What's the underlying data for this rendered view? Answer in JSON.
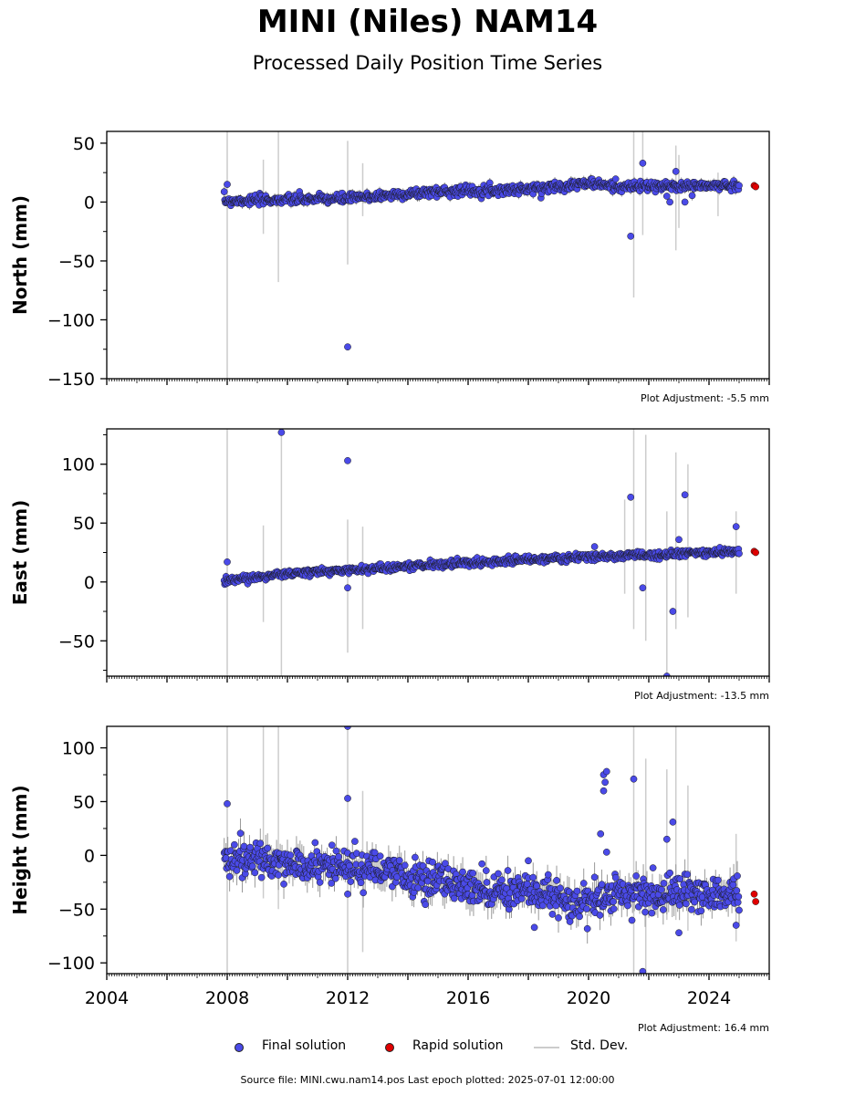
{
  "title": "MINI (Niles) NAM14",
  "subtitle": "Processed Daily Position Time Series",
  "footer": "Source file: MINI.cwu.nam14.pos  Last epoch plotted: 2025-07-01 12:00:00",
  "legend": {
    "final_label": "Final solution",
    "rapid_label": "Rapid solution",
    "stddev_label": "Std. Dev.",
    "final_color": "#4a4ae8",
    "rapid_color": "#e00000",
    "stddev_color": "#cccccc"
  },
  "chart_data": [
    {
      "type": "scatter",
      "ylabel": "North (mm)",
      "adjustment": "Plot Adjustment: -5.5 mm",
      "xlim": [
        2004,
        2026
      ],
      "ylim": [
        -150,
        60
      ],
      "yticks": [
        -150,
        -100,
        -50,
        0,
        50
      ],
      "ytick_labels": [
        "−150",
        "−100",
        "−50",
        "0",
        "50"
      ],
      "trend": [
        [
          2007.9,
          1
        ],
        [
          2012,
          3
        ],
        [
          2015,
          9
        ],
        [
          2018,
          11
        ],
        [
          2020,
          16
        ],
        [
          2021,
          13
        ],
        [
          2025,
          14
        ]
      ],
      "noise": 2,
      "outliers": [
        [
          2008.0,
          15
        ],
        [
          2012.0,
          -123
        ],
        [
          2021.4,
          -29
        ],
        [
          2021.8,
          33
        ],
        [
          2022.6,
          5
        ],
        [
          2022.9,
          26
        ],
        [
          2023.2,
          0
        ],
        [
          2022.7,
          0
        ]
      ],
      "rapid": [
        [
          2025.5,
          14
        ],
        [
          2025.55,
          13
        ]
      ],
      "stddev_bars": [
        [
          2008.0,
          -150,
          60
        ],
        [
          2009.2,
          -27,
          36
        ],
        [
          2009.7,
          -68,
          60
        ],
        [
          2012.0,
          -53,
          52
        ],
        [
          2012.5,
          -12,
          33
        ],
        [
          2021.5,
          -81,
          60
        ],
        [
          2021.8,
          -28,
          60
        ],
        [
          2022.9,
          -41,
          48
        ],
        [
          2023.0,
          -22,
          40
        ],
        [
          2024.3,
          -12,
          25
        ]
      ]
    },
    {
      "type": "scatter",
      "ylabel": "East (mm)",
      "adjustment": "Plot Adjustment: -13.5 mm",
      "xlim": [
        2004,
        2026
      ],
      "ylim": [
        -80,
        130
      ],
      "yticks": [
        -50,
        0,
        50,
        100
      ],
      "ytick_labels": [
        "−50",
        "0",
        "50",
        "100"
      ],
      "trend": [
        [
          2007.9,
          1
        ],
        [
          2010,
          7
        ],
        [
          2012,
          10
        ],
        [
          2015,
          15
        ],
        [
          2018,
          19
        ],
        [
          2021,
          22
        ],
        [
          2025,
          26
        ]
      ],
      "noise": 1.5,
      "outliers": [
        [
          2008.0,
          17
        ],
        [
          2009.8,
          127
        ],
        [
          2012.0,
          103
        ],
        [
          2012.0,
          -5
        ],
        [
          2021.4,
          72
        ],
        [
          2021.8,
          -5
        ],
        [
          2022.6,
          -80
        ],
        [
          2022.8,
          -25
        ],
        [
          2023.0,
          36
        ],
        [
          2023.2,
          74
        ],
        [
          2024.9,
          47
        ],
        [
          2020.2,
          30
        ]
      ],
      "rapid": [
        [
          2025.5,
          26
        ],
        [
          2025.55,
          25
        ]
      ],
      "stddev_bars": [
        [
          2008.0,
          -80,
          130
        ],
        [
          2009.2,
          -34,
          48
        ],
        [
          2009.8,
          -80,
          130
        ],
        [
          2012.0,
          -60,
          53
        ],
        [
          2012.5,
          -40,
          47
        ],
        [
          2021.2,
          -10,
          70
        ],
        [
          2021.5,
          -40,
          130
        ],
        [
          2021.9,
          -50,
          125
        ],
        [
          2022.6,
          -80,
          60
        ],
        [
          2022.9,
          -40,
          110
        ],
        [
          2023.3,
          -30,
          100
        ],
        [
          2024.9,
          -10,
          60
        ]
      ]
    },
    {
      "type": "scatter",
      "ylabel": "Height (mm)",
      "adjustment": "Plot Adjustment: 16.4 mm",
      "xlim": [
        2004,
        2026
      ],
      "ylim": [
        -110,
        120
      ],
      "yticks": [
        -100,
        -50,
        0,
        50,
        100
      ],
      "ytick_labels": [
        "−100",
        "−50",
        "0",
        "50",
        "100"
      ],
      "xticks": [
        2004,
        2008,
        2012,
        2016,
        2020,
        2024
      ],
      "trend": [
        [
          2007.9,
          0
        ],
        [
          2010,
          -10
        ],
        [
          2012,
          -10
        ],
        [
          2014,
          -20
        ],
        [
          2016,
          -28
        ],
        [
          2018,
          -35
        ],
        [
          2020,
          -45
        ],
        [
          2021,
          -35
        ],
        [
          2025,
          -35
        ]
      ],
      "noise": 8,
      "outliers": [
        [
          2008.0,
          48
        ],
        [
          2012.0,
          53
        ],
        [
          2012.0,
          120
        ],
        [
          2012.0,
          -36
        ],
        [
          2020.5,
          75
        ],
        [
          2020.55,
          68
        ],
        [
          2020.6,
          78
        ],
        [
          2020.5,
          60
        ],
        [
          2020.4,
          20
        ],
        [
          2020.6,
          3
        ],
        [
          2021.5,
          71
        ],
        [
          2021.8,
          -108
        ],
        [
          2022.6,
          15
        ],
        [
          2022.8,
          31
        ],
        [
          2023.0,
          -72
        ],
        [
          2018.0,
          -5
        ],
        [
          2024.9,
          -65
        ],
        [
          2018.2,
          -67
        ]
      ],
      "rapid": [
        [
          2025.5,
          -36
        ],
        [
          2025.55,
          -43
        ]
      ],
      "stddev_bars": [
        [
          2008.0,
          -110,
          120
        ],
        [
          2009.2,
          -40,
          120
        ],
        [
          2009.7,
          -50,
          120
        ],
        [
          2012.0,
          -110,
          120
        ],
        [
          2012.5,
          -90,
          60
        ],
        [
          2021.5,
          -110,
          120
        ],
        [
          2021.9,
          -110,
          90
        ],
        [
          2022.6,
          -60,
          80
        ],
        [
          2022.9,
          -60,
          120
        ],
        [
          2023.3,
          -70,
          65
        ],
        [
          2024.9,
          -80,
          20
        ]
      ]
    }
  ]
}
